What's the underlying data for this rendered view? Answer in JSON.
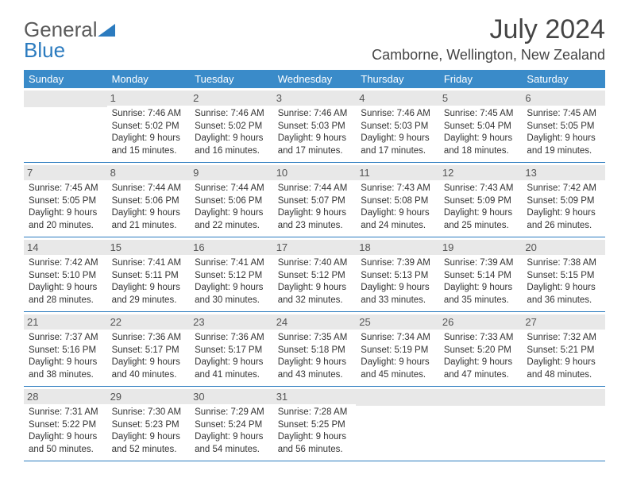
{
  "logo": {
    "text1": "General",
    "text2": "Blue"
  },
  "title": "July 2024",
  "location": "Camborne, Wellington, New Zealand",
  "dayNames": [
    "Sunday",
    "Monday",
    "Tuesday",
    "Wednesday",
    "Thursday",
    "Friday",
    "Saturday"
  ],
  "colors": {
    "header_bg": "#3a8bc9",
    "header_text": "#ffffff",
    "border": "#2b7bbf",
    "daynum_bg": "#e8e8e8",
    "logo_gray": "#5a5a5a",
    "logo_blue": "#2b7bbf"
  },
  "weeks": [
    [
      null,
      {
        "n": "1",
        "sr": "7:46 AM",
        "ss": "5:02 PM",
        "dl": "9 hours and 15 minutes."
      },
      {
        "n": "2",
        "sr": "7:46 AM",
        "ss": "5:02 PM",
        "dl": "9 hours and 16 minutes."
      },
      {
        "n": "3",
        "sr": "7:46 AM",
        "ss": "5:03 PM",
        "dl": "9 hours and 17 minutes."
      },
      {
        "n": "4",
        "sr": "7:46 AM",
        "ss": "5:03 PM",
        "dl": "9 hours and 17 minutes."
      },
      {
        "n": "5",
        "sr": "7:45 AM",
        "ss": "5:04 PM",
        "dl": "9 hours and 18 minutes."
      },
      {
        "n": "6",
        "sr": "7:45 AM",
        "ss": "5:05 PM",
        "dl": "9 hours and 19 minutes."
      }
    ],
    [
      {
        "n": "7",
        "sr": "7:45 AM",
        "ss": "5:05 PM",
        "dl": "9 hours and 20 minutes."
      },
      {
        "n": "8",
        "sr": "7:44 AM",
        "ss": "5:06 PM",
        "dl": "9 hours and 21 minutes."
      },
      {
        "n": "9",
        "sr": "7:44 AM",
        "ss": "5:06 PM",
        "dl": "9 hours and 22 minutes."
      },
      {
        "n": "10",
        "sr": "7:44 AM",
        "ss": "5:07 PM",
        "dl": "9 hours and 23 minutes."
      },
      {
        "n": "11",
        "sr": "7:43 AM",
        "ss": "5:08 PM",
        "dl": "9 hours and 24 minutes."
      },
      {
        "n": "12",
        "sr": "7:43 AM",
        "ss": "5:09 PM",
        "dl": "9 hours and 25 minutes."
      },
      {
        "n": "13",
        "sr": "7:42 AM",
        "ss": "5:09 PM",
        "dl": "9 hours and 26 minutes."
      }
    ],
    [
      {
        "n": "14",
        "sr": "7:42 AM",
        "ss": "5:10 PM",
        "dl": "9 hours and 28 minutes."
      },
      {
        "n": "15",
        "sr": "7:41 AM",
        "ss": "5:11 PM",
        "dl": "9 hours and 29 minutes."
      },
      {
        "n": "16",
        "sr": "7:41 AM",
        "ss": "5:12 PM",
        "dl": "9 hours and 30 minutes."
      },
      {
        "n": "17",
        "sr": "7:40 AM",
        "ss": "5:12 PM",
        "dl": "9 hours and 32 minutes."
      },
      {
        "n": "18",
        "sr": "7:39 AM",
        "ss": "5:13 PM",
        "dl": "9 hours and 33 minutes."
      },
      {
        "n": "19",
        "sr": "7:39 AM",
        "ss": "5:14 PM",
        "dl": "9 hours and 35 minutes."
      },
      {
        "n": "20",
        "sr": "7:38 AM",
        "ss": "5:15 PM",
        "dl": "9 hours and 36 minutes."
      }
    ],
    [
      {
        "n": "21",
        "sr": "7:37 AM",
        "ss": "5:16 PM",
        "dl": "9 hours and 38 minutes."
      },
      {
        "n": "22",
        "sr": "7:36 AM",
        "ss": "5:17 PM",
        "dl": "9 hours and 40 minutes."
      },
      {
        "n": "23",
        "sr": "7:36 AM",
        "ss": "5:17 PM",
        "dl": "9 hours and 41 minutes."
      },
      {
        "n": "24",
        "sr": "7:35 AM",
        "ss": "5:18 PM",
        "dl": "9 hours and 43 minutes."
      },
      {
        "n": "25",
        "sr": "7:34 AM",
        "ss": "5:19 PM",
        "dl": "9 hours and 45 minutes."
      },
      {
        "n": "26",
        "sr": "7:33 AM",
        "ss": "5:20 PM",
        "dl": "9 hours and 47 minutes."
      },
      {
        "n": "27",
        "sr": "7:32 AM",
        "ss": "5:21 PM",
        "dl": "9 hours and 48 minutes."
      }
    ],
    [
      {
        "n": "28",
        "sr": "7:31 AM",
        "ss": "5:22 PM",
        "dl": "9 hours and 50 minutes."
      },
      {
        "n": "29",
        "sr": "7:30 AM",
        "ss": "5:23 PM",
        "dl": "9 hours and 52 minutes."
      },
      {
        "n": "30",
        "sr": "7:29 AM",
        "ss": "5:24 PM",
        "dl": "9 hours and 54 minutes."
      },
      {
        "n": "31",
        "sr": "7:28 AM",
        "ss": "5:25 PM",
        "dl": "9 hours and 56 minutes."
      },
      null,
      null,
      null
    ]
  ],
  "labels": {
    "sunrise": "Sunrise:",
    "sunset": "Sunset:",
    "daylight": "Daylight:"
  }
}
